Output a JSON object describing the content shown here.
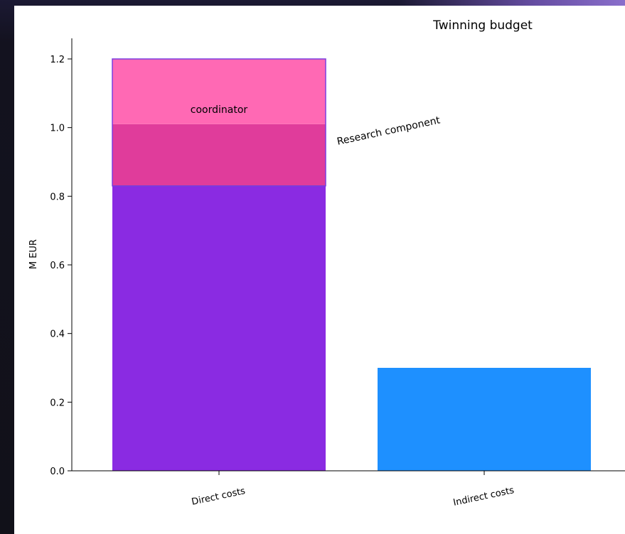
{
  "chart_data": {
    "type": "bar",
    "title": "Twinning budget",
    "xlabel": "",
    "ylabel": "M EUR",
    "ylim": [
      0,
      1.2
    ],
    "yticks": [
      "0.0",
      "0.2",
      "0.4",
      "0.6",
      "0.8",
      "1.0",
      "1.2"
    ],
    "categories": [
      "Direct costs",
      "Indirect costs"
    ],
    "bars": [
      {
        "category": "Direct costs",
        "total": 1.2,
        "segments": [
          {
            "from": 0.0,
            "to": 0.83,
            "color": "#8a2be2"
          },
          {
            "from": 0.83,
            "to": 1.01,
            "color": "#e03c9b"
          },
          {
            "from": 1.01,
            "to": 1.2,
            "color": "#ff69b4"
          }
        ]
      },
      {
        "category": "Indirect costs",
        "total": 0.3,
        "segments": [
          {
            "from": 0.0,
            "to": 0.3,
            "color": "#1e90ff"
          }
        ]
      }
    ],
    "annotations": [
      "coordinator",
      "Research component"
    ],
    "grid": false,
    "legend": "none"
  }
}
